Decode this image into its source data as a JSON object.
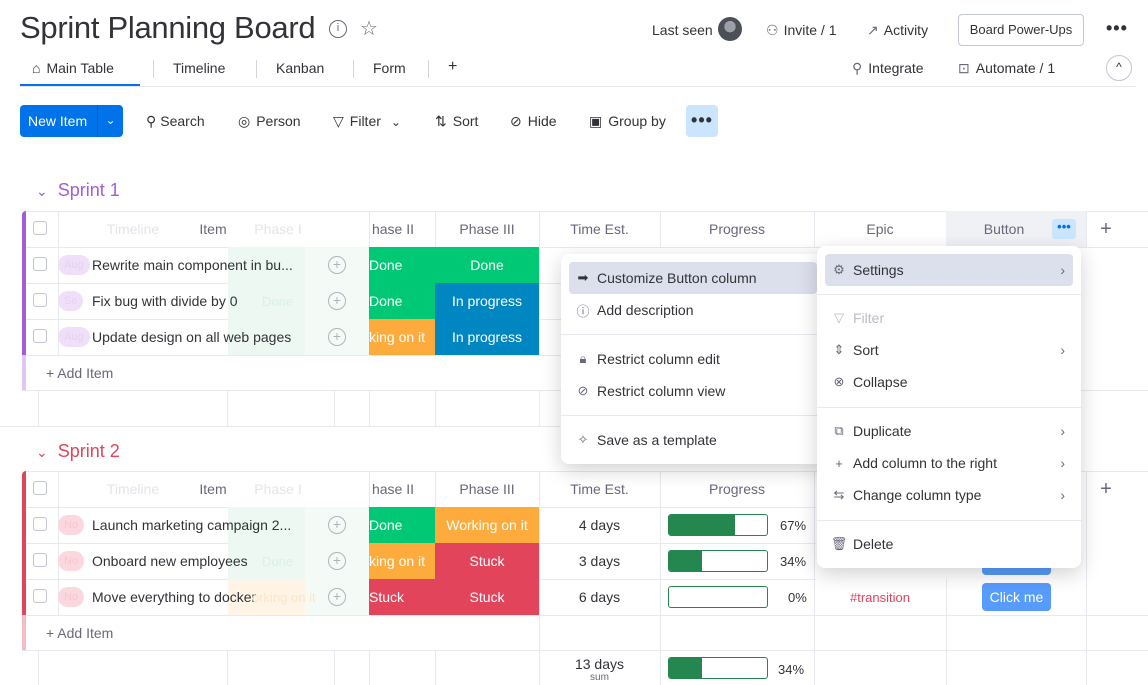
{
  "board": {
    "title": "Sprint Planning Board",
    "last_seen": "Last seen",
    "invite": "Invite / 1",
    "activity": "Activity",
    "powerups": "Board Power-Ups",
    "more": "•••"
  },
  "tabs": {
    "items": [
      "Main Table",
      "Timeline",
      "Kanban",
      "Form"
    ],
    "add": "+",
    "integrate": "Integrate",
    "automate": "Automate / 1",
    "collapse": "^"
  },
  "toolbar": {
    "new_item": "New Item",
    "search": "Search",
    "person": "Person",
    "filter": "Filter",
    "sort": "Sort",
    "hide": "Hide",
    "group_by": "Group by",
    "more": "•••"
  },
  "columns": {
    "timeline": "Timeline",
    "item": "Item",
    "phase1": "Phase I",
    "phase2": "hase II",
    "phase3": "Phase III",
    "time_est": "Time Est.",
    "progress": "Progress",
    "epic": "Epic",
    "button": "Button",
    "add": "+"
  },
  "colors": {
    "done": "#00c875",
    "in_progress": "#0086c0",
    "working": "#fdab3d",
    "stuck": "#e2445c",
    "sprint1": "#a25ddc",
    "sprint2": "#e2445c"
  },
  "sprint1": {
    "title": "Sprint 1",
    "add_item": "+ Add Item",
    "rows": [
      {
        "pill": "Aug",
        "item": "Rewrite main component in bu...",
        "phase2": "Done",
        "phase3": "Done"
      },
      {
        "pill": "Se",
        "item": "Fix bug with divide by 0",
        "phase1": "Done",
        "phase2": "Done",
        "phase3": "In progress"
      },
      {
        "pill": "Aug",
        "item": "Update design on all web pages",
        "phase2": "king on it",
        "phase3": "In progress"
      }
    ]
  },
  "sprint2": {
    "title": "Sprint 2",
    "add_item": "+ Add Item",
    "rows": [
      {
        "pill": "No",
        "item": "Launch marketing campaign 2...",
        "phase2": "Done",
        "phase3": "Working on it",
        "time": "4 days",
        "progress": 67,
        "progress_label": "67%"
      },
      {
        "pill": "No",
        "item": "Onboard new employees",
        "phase1": "Done",
        "phase2": "king on it",
        "phase3": "Stuck",
        "time": "3 days",
        "progress": 34,
        "progress_label": "34%"
      },
      {
        "pill": "No",
        "item": "Move everything to docker",
        "phase1": "orking on it",
        "phase2": "Stuck",
        "phase3": "Stuck",
        "time": "6 days",
        "progress": 0,
        "progress_label": "0%",
        "epic": "#transition",
        "button": "Click me"
      }
    ],
    "summary": {
      "time": "13 days",
      "time_sub": "sum",
      "progress": 34,
      "progress_label": "34%"
    }
  },
  "column_menu": {
    "customize": "Customize Button column",
    "add_description": "Add description",
    "restrict_edit": "Restrict column edit",
    "restrict_view": "Restrict column view",
    "save_template": "Save as a template"
  },
  "settings_menu": {
    "settings": "Settings",
    "filter": "Filter",
    "sort": "Sort",
    "collapse": "Collapse",
    "duplicate": "Duplicate",
    "add_column_right": "Add column to the right",
    "change_type": "Change column type",
    "delete": "Delete"
  }
}
